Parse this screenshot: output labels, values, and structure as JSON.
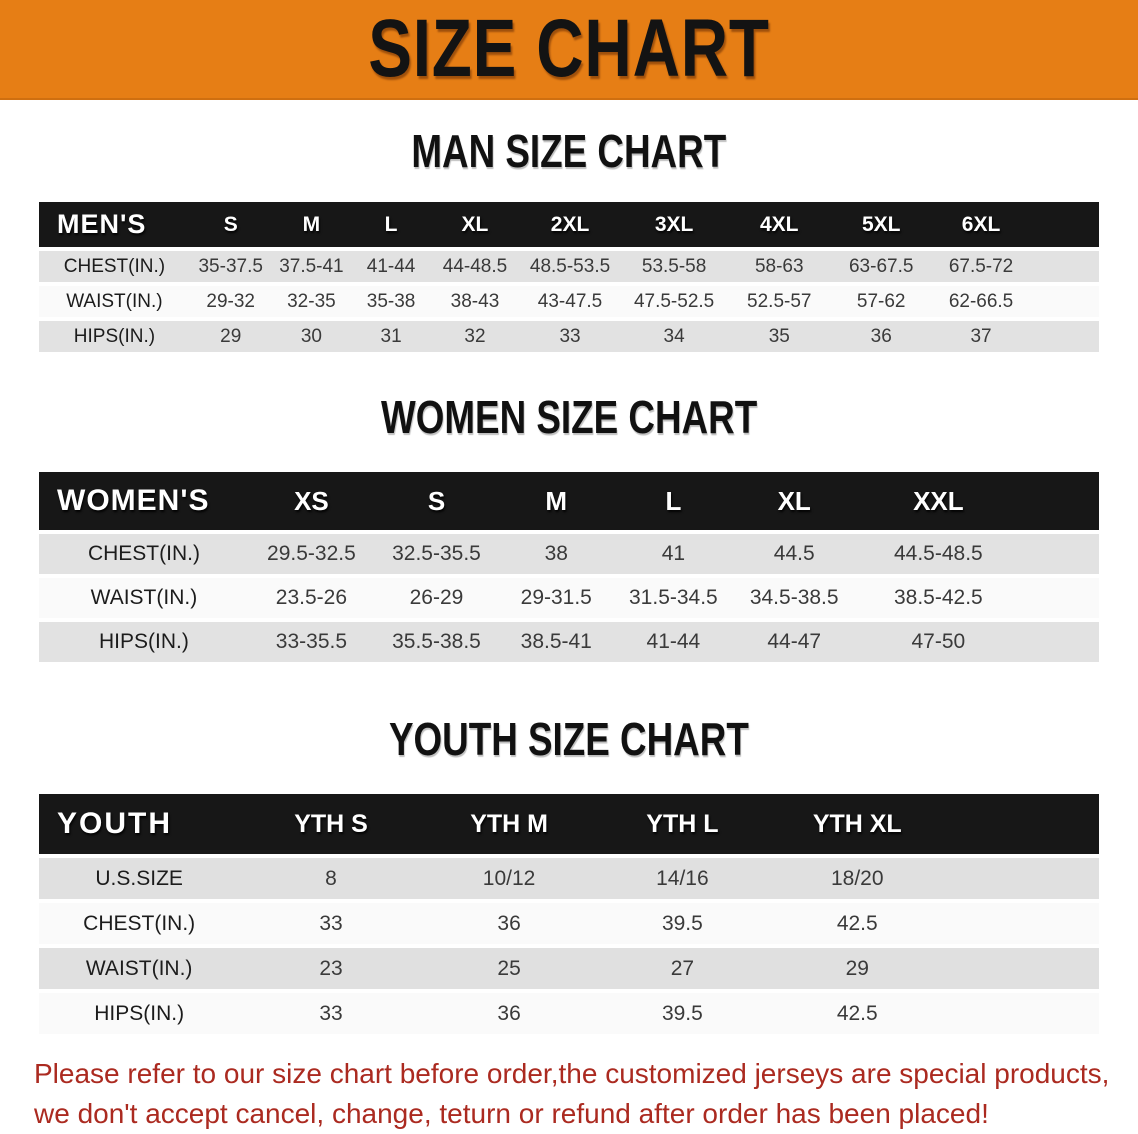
{
  "banner": {
    "title": "SIZE CHART",
    "bg_color": "#e67e15",
    "text_color": "#131313"
  },
  "sections": [
    {
      "heading": "MAN SIZE CHART",
      "header_label": "MEN'S",
      "columns": [
        "S",
        "M",
        "L",
        "XL",
        "2XL",
        "3XL",
        "4XL",
        "5XL",
        "6XL"
      ],
      "rows": [
        {
          "label": "CHEST(IN.)",
          "values": [
            "35-37.5",
            "37.5-41",
            "41-44",
            "44-48.5",
            "48.5-53.5",
            "53.5-58",
            "58-63",
            "63-67.5",
            "67.5-72"
          ]
        },
        {
          "label": "WAIST(IN.)",
          "values": [
            "29-32",
            "32-35",
            "35-38",
            "38-43",
            "43-47.5",
            "47.5-52.5",
            "52.5-57",
            "57-62",
            "62-66.5"
          ]
        },
        {
          "label": "HIPS(IN.)",
          "values": [
            "29",
            "30",
            "31",
            "32",
            "33",
            "34",
            "35",
            "36",
            "37"
          ]
        }
      ]
    },
    {
      "heading": "WOMEN SIZE CHART",
      "header_label": "WOMEN'S",
      "columns": [
        "XS",
        "S",
        "M",
        "L",
        "XL",
        "XXL"
      ],
      "rows": [
        {
          "label": "CHEST(IN.)",
          "values": [
            "29.5-32.5",
            "32.5-35.5",
            "38",
            "41",
            "44.5",
            "44.5-48.5"
          ]
        },
        {
          "label": "WAIST(IN.)",
          "values": [
            "23.5-26",
            "26-29",
            "29-31.5",
            "31.5-34.5",
            "34.5-38.5",
            "38.5-42.5"
          ]
        },
        {
          "label": "HIPS(IN.)",
          "values": [
            "33-35.5",
            "35.5-38.5",
            "38.5-41",
            "41-44",
            "44-47",
            "47-50"
          ]
        }
      ]
    },
    {
      "heading": "YOUTH SIZE CHART",
      "header_label": "YOUTH",
      "columns": [
        "YTH S",
        "YTH M",
        "YTH L",
        "YTH XL"
      ],
      "rows": [
        {
          "label": "U.S.SIZE",
          "values": [
            "8",
            "10/12",
            "14/16",
            "18/20"
          ]
        },
        {
          "label": "CHEST(IN.)",
          "values": [
            "33",
            "36",
            "39.5",
            "42.5"
          ]
        },
        {
          "label": "WAIST(IN.)",
          "values": [
            "23",
            "25",
            "27",
            "29"
          ]
        },
        {
          "label": "HIPS(IN.)",
          "values": [
            "33",
            "36",
            "39.5",
            "42.5"
          ]
        }
      ]
    }
  ],
  "disclaimer": {
    "line1": "Please refer to our size chart before order,the customized jerseys are special products,",
    "line2": "we don't accept cancel, change, teturn or refund after order has been placed!",
    "color": "#ab2a20"
  }
}
